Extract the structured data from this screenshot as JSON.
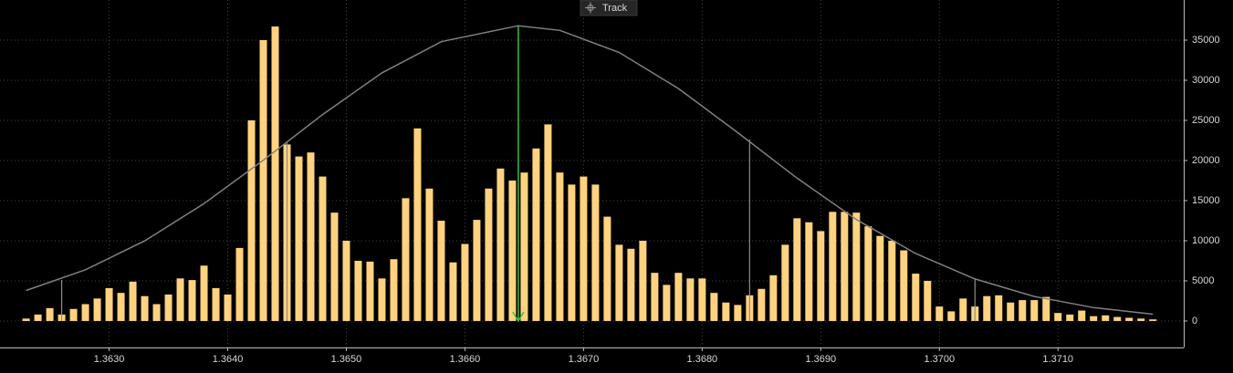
{
  "chart_data": {
    "type": "bar",
    "track_button": "Track",
    "x": [
      1.3623,
      1.3624,
      1.3625,
      1.3626,
      1.3627,
      1.3628,
      1.3629,
      1.363,
      1.3631,
      1.3632,
      1.3633,
      1.3634,
      1.3635,
      1.3636,
      1.3637,
      1.3638,
      1.3639,
      1.364,
      1.3641,
      1.3642,
      1.3643,
      1.3644,
      1.3645,
      1.3646,
      1.3647,
      1.3648,
      1.3649,
      1.365,
      1.3651,
      1.3652,
      1.3653,
      1.3654,
      1.3655,
      1.3656,
      1.3657,
      1.3658,
      1.3659,
      1.366,
      1.3661,
      1.3662,
      1.3663,
      1.3664,
      1.3665,
      1.3666,
      1.3667,
      1.3668,
      1.3669,
      1.367,
      1.3671,
      1.3672,
      1.3673,
      1.3674,
      1.3675,
      1.3676,
      1.3677,
      1.3678,
      1.3679,
      1.368,
      1.3681,
      1.3682,
      1.3683,
      1.3684,
      1.3685,
      1.3686,
      1.3687,
      1.3688,
      1.3689,
      1.369,
      1.3691,
      1.3692,
      1.3693,
      1.3694,
      1.3695,
      1.3696,
      1.3697,
      1.3698,
      1.3699,
      1.37,
      1.3701,
      1.3702,
      1.3703,
      1.3704,
      1.3705,
      1.3706,
      1.3707,
      1.3708,
      1.3709,
      1.371,
      1.3711,
      1.3712,
      1.3713,
      1.3714,
      1.3715,
      1.3716,
      1.3717,
      1.3718
    ],
    "values": [
      300,
      800,
      1600,
      800,
      1500,
      2100,
      2800,
      4100,
      3500,
      4900,
      3100,
      2100,
      3300,
      5300,
      5100,
      6900,
      4100,
      3300,
      9100,
      25000,
      35000,
      36700,
      22000,
      20500,
      21000,
      18000,
      13500,
      10000,
      7500,
      7400,
      5300,
      7700,
      15300,
      24000,
      16500,
      12500,
      7300,
      9600,
      12600,
      16500,
      19000,
      17500,
      18500,
      21500,
      24500,
      18500,
      17000,
      18000,
      17000,
      13000,
      9500,
      9000,
      10000,
      6000,
      4500,
      6000,
      5300,
      5300,
      3500,
      2300,
      2000,
      3200,
      4000,
      5700,
      9500,
      12800,
      12300,
      11200,
      13600,
      13600,
      13500,
      11800,
      10600,
      10000,
      8800,
      5900,
      5000,
      1800,
      1200,
      2800,
      1800,
      3100,
      3200,
      2300,
      2600,
      2600,
      3000,
      1000,
      800,
      1300,
      600,
      700,
      500,
      400,
      300,
      200
    ],
    "color": "#ffd27f",
    "curve": {
      "color": "#808080",
      "x": [
        1.3623,
        1.3628,
        1.3633,
        1.3638,
        1.3643,
        1.3648,
        1.3653,
        1.3658,
        1.36645,
        1.3668,
        1.3673,
        1.3678,
        1.3683,
        1.3688,
        1.3693,
        1.3698,
        1.3703,
        1.3708,
        1.3713,
        1.3718
      ],
      "values": [
        3800,
        6380,
        9990,
        14620,
        20030,
        25730,
        30920,
        34810,
        36800,
        36210,
        33460,
        28960,
        23460,
        17800,
        12640,
        8410,
        5240,
        3050,
        1670,
        850
      ]
    },
    "markers": [
      {
        "x": 1.3626,
        "value": 5100
      },
      {
        "x": 1.3645,
        "value": 22300
      },
      {
        "x": 1.3684,
        "value": 22600
      },
      {
        "x": 1.3703,
        "value": 5200
      }
    ],
    "marker_color": "#8c8c8c",
    "mean_marker": {
      "x": 1.36645,
      "value": 36800,
      "color": "#3fbf3f"
    },
    "xlim": [
      1.36208,
      1.37206
    ],
    "ylim": [
      -3300,
      40000
    ],
    "xticks": [
      {
        "value": 1.363,
        "label": "1.3630"
      },
      {
        "value": 1.364,
        "label": "1.3640"
      },
      {
        "value": 1.365,
        "label": "1.3650"
      },
      {
        "value": 1.366,
        "label": "1.3660"
      },
      {
        "value": 1.367,
        "label": "1.3670"
      },
      {
        "value": 1.368,
        "label": "1.3680"
      },
      {
        "value": 1.369,
        "label": "1.3690"
      },
      {
        "value": 1.37,
        "label": "1.3700"
      },
      {
        "value": 1.371,
        "label": "1.3710"
      }
    ],
    "yticks": [
      0,
      5000,
      10000,
      15000,
      20000,
      25000,
      30000,
      35000
    ],
    "grid": true
  }
}
